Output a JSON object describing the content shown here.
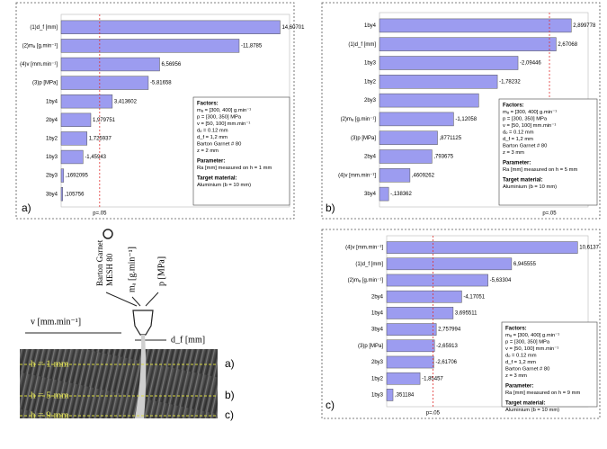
{
  "chart_data": [
    {
      "type": "pareto",
      "panel_label": "a)",
      "color": "#9c9cf0",
      "ref_color": "#e03030",
      "categories": [
        "(1)d_f [mm]",
        "(2)mₐ [g.min⁻¹]",
        "(4)v [mm.min⁻¹]",
        "(3)p [MPa]",
        "1by4",
        "2by4",
        "1by2",
        "1by3",
        "2by3",
        "3by4"
      ],
      "values": [
        14.60701,
        -11.8785,
        6.56956,
        -5.81658,
        3.413602,
        1.979751,
        1.725937,
        -1.45943,
        0.1692095,
        0.105756
      ],
      "value_labels": [
        "14,60701",
        "-11,8785",
        "6,56956",
        "-5,81658",
        "3,413602",
        "1,979751",
        "1,725937",
        "-1,45943",
        ",1692095",
        ",105756"
      ],
      "xlim": [
        0,
        15
      ],
      "ref_line": {
        "value": 2.57,
        "label": "p=.05"
      },
      "notes": [
        {
          "heading": "Factors:",
          "lines": [
            "mₐ = [300, 400] g.min⁻¹",
            "p = [300, 350] MPa",
            "v = [50, 100] mm.min⁻¹",
            "dₒ = 0.12 mm",
            "d_f = 1,2 mm",
            "Barton Garnet # 80",
            "z = 2 mm"
          ]
        },
        {
          "heading": "Parameter:",
          "lines": [
            "Ra [mm] measured on h = 1 mm"
          ]
        },
        {
          "heading": "Target material:",
          "lines": [
            "Aluminium (b = 10 mm)"
          ]
        }
      ]
    },
    {
      "type": "pareto",
      "panel_label": "b)",
      "color": "#9c9cf0",
      "ref_color": "#e03030",
      "categories": [
        "1by4",
        "(1)d_f [mm]",
        "1by3",
        "1by2",
        "2by3",
        "(2)mₐ [g.min⁻¹]",
        "(3)p [MPa]",
        "2by4",
        "(4)v [mm.min⁻¹]",
        "3by4"
      ],
      "values": [
        2.899778,
        2.67068,
        -2.09446,
        -1.78232,
        -1.5,
        -1.12058,
        0.8771125,
        0.793675,
        0.4609262,
        -0.138362
      ],
      "value_labels": [
        "2,899778",
        "2,67068",
        "-2,09446",
        "-1,78232",
        null,
        "-1,12058",
        ",8771125",
        ",793675",
        ",4609262",
        "-,138362"
      ],
      "xlim": [
        0,
        3.1
      ],
      "ref_line": {
        "value": 2.57,
        "label": "p=.05"
      },
      "notes": [
        {
          "heading": "Factors:",
          "lines": [
            "mₐ = [300, 400] g.min⁻¹",
            "p = [300, 350] MPa",
            "v = [50, 100] mm.min⁻¹",
            "dₒ = 0.12 mm",
            "d_f = 1,2 mm",
            "Barton Garnet # 80",
            "z = 3 mm"
          ]
        },
        {
          "heading": "Parameter:",
          "lines": [
            "Ra [mm] measured on h = 5 mm"
          ]
        },
        {
          "heading": "Target material:",
          "lines": [
            "Aluminium (b = 10 mm)"
          ]
        }
      ]
    },
    {
      "type": "pareto",
      "panel_label": "c)",
      "color": "#9c9cf0",
      "ref_color": "#e03030",
      "categories": [
        "(4)v [mm.min⁻¹]",
        "(1)d_f [mm]",
        "(2)mₐ [g.min⁻¹]",
        "2by4",
        "1by4",
        "3by4",
        "(3)p [MPa]",
        "2by3",
        "1by2",
        "1by3"
      ],
      "values": [
        10.6137,
        6.945555,
        -5.63304,
        -4.17051,
        3.695511,
        2.757994,
        -2.65913,
        -2.61706,
        -1.85457,
        0.351184
      ],
      "value_labels": [
        "10,6137",
        "6,945555",
        "-5,63304",
        "-4,17051",
        "3,695511",
        "2,757994",
        "-2,65913",
        "-2,61706",
        "-1,85457",
        ",351184"
      ],
      "xlim": [
        0,
        11
      ],
      "ref_line": {
        "value": 2.57,
        "label": "p=.05"
      },
      "notes": [
        {
          "heading": "Factors:",
          "lines": [
            "mₐ = [300, 400] g.min⁻¹",
            "p = [300, 350] MPa",
            "v = [50, 100] mm.min⁻¹",
            "dₒ = 0.12 mm",
            "d_f = 1,2 mm",
            "Barton Garnet # 80",
            "z = 3 mm"
          ]
        },
        {
          "heading": "Parameter:",
          "lines": [
            "Ra [mm] measured on h = 9 mm"
          ]
        },
        {
          "heading": "Target material:",
          "lines": [
            "Aluminium (b = 10 mm)"
          ]
        }
      ]
    }
  ],
  "photo": {
    "abrasive": "Barton Garnet",
    "mesh": "MESH 80",
    "flow": "mₐ [g.min⁻¹]",
    "pressure": "p [MPa]",
    "speed": "v [mm.min⁻¹]",
    "diameter": "d_f [mm]",
    "levels": [
      {
        "text": "h = 1 mm",
        "label": "a)"
      },
      {
        "text": "h = 5 mm",
        "label": "b)"
      },
      {
        "text": "h = 9 mm",
        "label": "c)"
      }
    ]
  }
}
